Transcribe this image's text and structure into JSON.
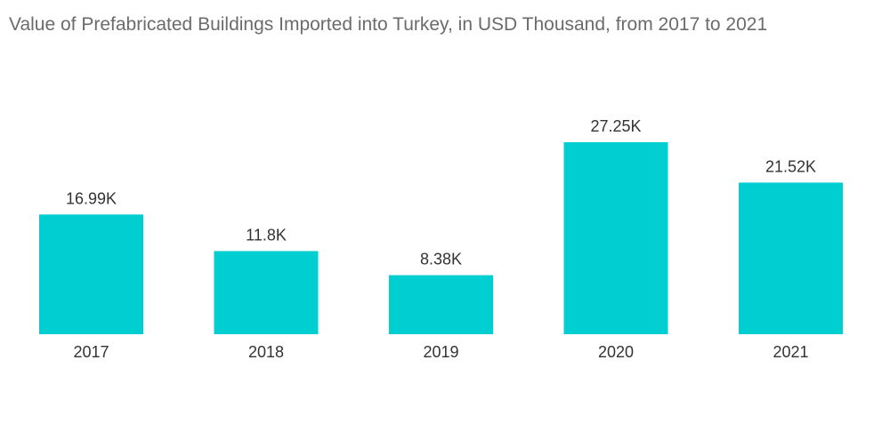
{
  "chart_data": {
    "type": "bar",
    "title": "Value of Prefabricated Buildings Imported into Turkey, in USD Thousand, from 2017 to 2021",
    "categories": [
      "2017",
      "2018",
      "2019",
      "2020",
      "2021"
    ],
    "values": [
      16.99,
      11.8,
      8.38,
      27.25,
      21.52
    ],
    "value_labels": [
      "16.99K",
      "11.8K",
      "8.38K",
      "27.25K",
      "21.52K"
    ],
    "xlabel": "",
    "ylabel": "",
    "ylim": [
      0,
      27.25
    ],
    "grid": false,
    "legend": "none",
    "bar_color": "#00CED1"
  }
}
